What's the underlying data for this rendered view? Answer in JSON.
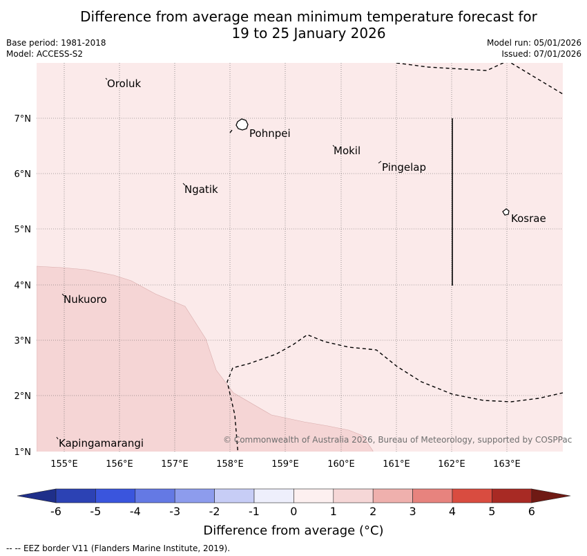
{
  "title_line1": "Difference from average mean minimum temperature forecast for",
  "title_line2": "19 to 25 January 2026",
  "meta": {
    "base_period": "Base period: 1981-2018",
    "model": "Model: ACCESS-S2",
    "model_run": "Model run: 05/01/2026",
    "issued": "Issued: 07/01/2026"
  },
  "axes": {
    "lat_labels": [
      "7°N",
      "6°N",
      "5°N",
      "4°N",
      "3°N",
      "2°N",
      "1°N"
    ],
    "lon_labels": [
      "155°E",
      "156°E",
      "157°E",
      "158°E",
      "159°E",
      "160°E",
      "161°E",
      "162°E",
      "163°E"
    ]
  },
  "places": {
    "oroluk": "Oroluk",
    "pohnpei": "Pohnpei",
    "mokil": "Mokil",
    "pingelap": "Pingelap",
    "ngatik": "Ngatik",
    "kosrae": "Kosrae",
    "nukuoro": "Nukuoro",
    "kapingamarangi": "Kapingamarangi"
  },
  "copyright": "© Commonwealth of Australia 2026, Bureau of Meteorology, supported by COSPPac",
  "colorbar": {
    "title": "Difference from average (°C)",
    "ticks": [
      "-6",
      "-5",
      "-4",
      "-3",
      "-2",
      "-1",
      "0",
      "1",
      "2",
      "3",
      "4",
      "5",
      "6"
    ],
    "colors": [
      "#1f2f8a",
      "#2c42b4",
      "#3a55dd",
      "#6479e4",
      "#8d9ced",
      "#c7cdf6",
      "#eeeffc",
      "#fdf0f0",
      "#f6d7d7",
      "#efb0ad",
      "#e7837e",
      "#d94c40",
      "#a82a24",
      "#6f1a14"
    ]
  },
  "legend": {
    "eez_note": "-- -- EEZ border V11 (Flanders Marine Institute, 2019)."
  },
  "map_colors": {
    "background": "#fbeaea",
    "anomaly_shade": "#f5d5d5"
  }
}
